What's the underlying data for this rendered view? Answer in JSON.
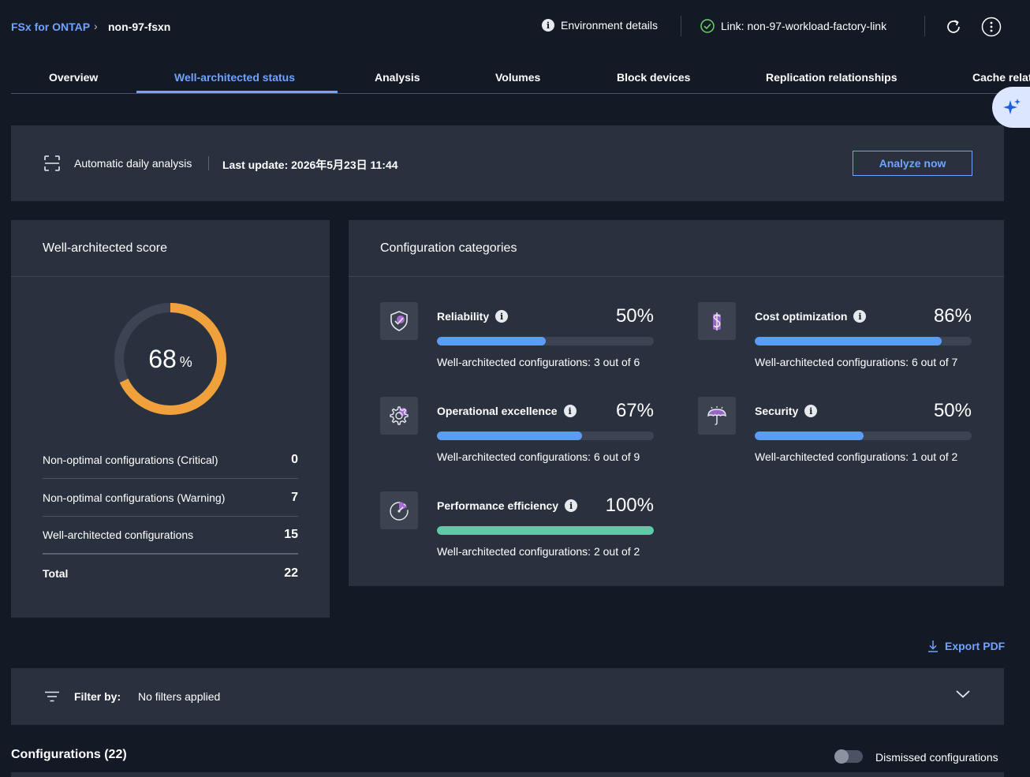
{
  "breadcrumb": {
    "root": "FSx for ONTAP",
    "separator": "›",
    "current": "non-97-fsxn"
  },
  "header": {
    "environment_details": "Environment details",
    "link_status": "Link: non-97-workload-factory-link"
  },
  "tabs": [
    {
      "label": "Overview"
    },
    {
      "label": "Well-architected status",
      "active": true
    },
    {
      "label": "Analysis"
    },
    {
      "label": "Volumes"
    },
    {
      "label": "Block devices"
    },
    {
      "label": "Replication relationships"
    },
    {
      "label": "Cache relat"
    }
  ],
  "analysis": {
    "mode": "Automatic daily analysis",
    "last_update": "Last update: 2026年5月23日 11:44",
    "button": "Analyze now"
  },
  "score": {
    "title": "Well-architected score",
    "value": "68",
    "unit": "%",
    "fraction": 0.68,
    "ring_color": "#f0a13c",
    "track_color": "#3c4454",
    "rows": [
      {
        "label": "Non-optimal configurations (Critical)",
        "value": "0"
      },
      {
        "label": "Non-optimal configurations (Warning)",
        "value": "7"
      },
      {
        "label": "Well-architected configurations",
        "value": "15"
      },
      {
        "label": "Total",
        "value": "22"
      }
    ]
  },
  "categories": {
    "title": "Configuration categories",
    "items": [
      {
        "name": "Reliability",
        "pct": "50%",
        "fraction": 0.5,
        "detail": "Well-architected configurations: 3 out of 6",
        "icon": "shield-check-icon"
      },
      {
        "name": "Cost optimization",
        "pct": "86%",
        "fraction": 0.86,
        "detail": "Well-architected configurations: 6 out of 7",
        "icon": "dollar-icon"
      },
      {
        "name": "Operational excellence",
        "pct": "67%",
        "fraction": 0.67,
        "detail": "Well-architected configurations: 6 out of 9",
        "icon": "gear-icon"
      },
      {
        "name": "Security",
        "pct": "50%",
        "fraction": 0.5,
        "detail": "Well-architected configurations: 1 out of 2",
        "icon": "umbrella-icon"
      },
      {
        "name": "Performance efficiency",
        "pct": "100%",
        "fraction": 1.0,
        "detail": "Well-architected configurations: 2 out of 2",
        "icon": "gauge-icon"
      }
    ]
  },
  "export_label": "Export PDF",
  "filter": {
    "label": "Filter by:",
    "value": "No filters applied"
  },
  "configurations": {
    "title": "Configurations (22)",
    "dismissed_label": "Dismissed configurations"
  },
  "colors": {
    "accent": "#6fa3ff",
    "bar_blue": "#5b9cf7",
    "bar_green": "#5fc9a8",
    "panel": "#2a313e",
    "background": "#131a26"
  }
}
